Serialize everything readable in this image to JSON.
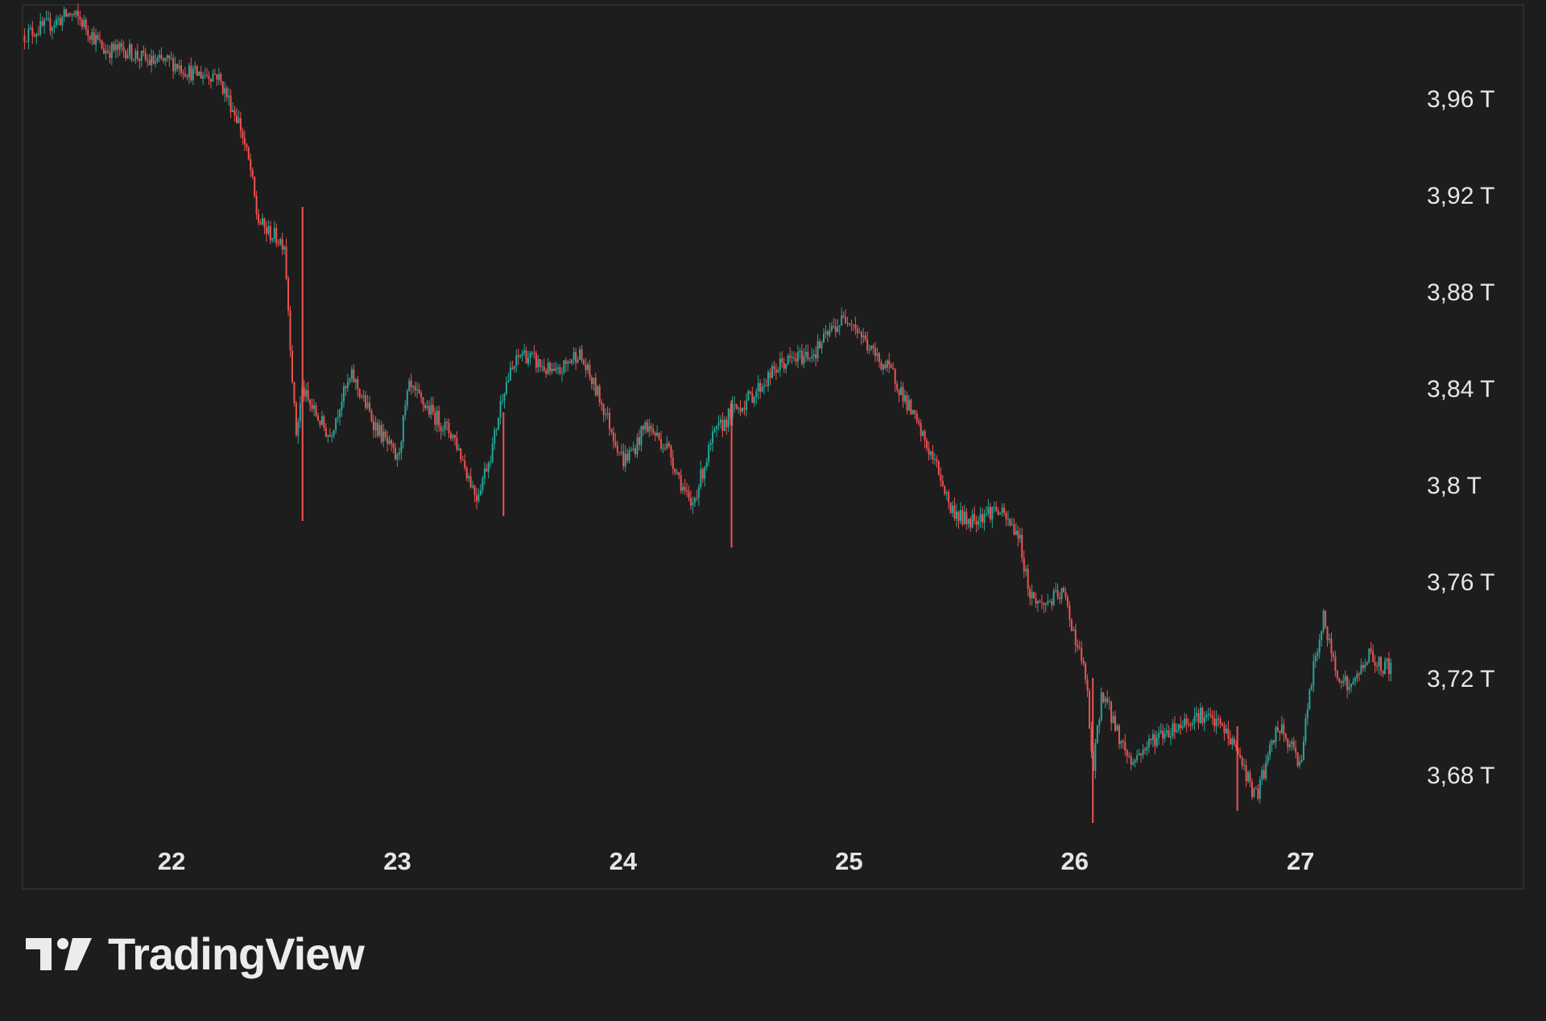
{
  "brand": {
    "name": "TradingView",
    "logo_icon": "tradingview-logo-icon",
    "text_color": "#ececec"
  },
  "colors": {
    "background": "#1d1d1d",
    "frame": "#2c2c2c",
    "up": "#26a69a",
    "down": "#ef5350",
    "label": "#e6e6e6"
  },
  "chart_data": {
    "type": "candlestick",
    "grid": false,
    "legend": "none",
    "y_axis_position": "right",
    "ylim": [
      3.655,
      4.0
    ],
    "xlim": [
      21.34,
      27.98
    ],
    "x_ticks": [
      {
        "value": 22,
        "label": "22"
      },
      {
        "value": 23,
        "label": "23"
      },
      {
        "value": 24,
        "label": "24"
      },
      {
        "value": 25,
        "label": "25"
      },
      {
        "value": 26,
        "label": "26"
      },
      {
        "value": 27,
        "label": "27"
      }
    ],
    "y_ticks": [
      {
        "value": 3.96,
        "label": "3,96 T"
      },
      {
        "value": 3.92,
        "label": "3,92 T"
      },
      {
        "value": 3.88,
        "label": "3,88 T"
      },
      {
        "value": 3.84,
        "label": "3,84 T"
      },
      {
        "value": 3.8,
        "label": "3,8 T"
      },
      {
        "value": 3.76,
        "label": "3,76 T"
      },
      {
        "value": 3.72,
        "label": "3,72 T"
      },
      {
        "value": 3.68,
        "label": "3,68 T"
      }
    ],
    "series": [
      {
        "x": [
          21.34,
          21.45,
          21.55,
          21.6,
          21.7,
          21.8,
          21.9,
          22.0,
          22.1,
          22.2,
          22.3,
          22.35,
          22.38,
          22.42,
          22.5,
          22.55,
          22.58,
          22.6,
          22.7,
          22.75,
          22.8,
          22.9,
          23.0,
          23.05,
          23.15,
          23.25,
          23.35,
          23.42,
          23.47,
          23.55,
          23.7,
          23.8,
          23.9,
          24.0,
          24.05,
          24.1,
          24.2,
          24.3,
          24.4,
          24.48,
          24.55,
          24.7,
          24.85,
          24.93,
          25.0,
          25.1,
          25.2,
          25.3,
          25.4,
          25.45,
          25.52,
          25.65,
          25.75,
          25.8,
          25.85,
          25.95,
          26.05,
          26.08,
          26.12,
          26.2,
          26.25,
          26.35,
          26.45,
          26.55,
          26.65,
          26.72,
          26.8,
          26.9,
          27.0,
          27.05,
          27.1,
          27.15,
          27.22,
          27.3,
          27.35,
          27.4
        ],
        "close": [
          3.986,
          3.99,
          3.995,
          3.992,
          3.98,
          3.98,
          3.975,
          3.975,
          3.97,
          3.97,
          3.95,
          3.93,
          3.91,
          3.905,
          3.9,
          3.82,
          3.84,
          3.835,
          3.82,
          3.835,
          3.845,
          3.825,
          3.81,
          3.84,
          3.83,
          3.82,
          3.795,
          3.815,
          3.84,
          3.855,
          3.845,
          3.855,
          3.835,
          3.81,
          3.815,
          3.825,
          3.815,
          3.79,
          3.82,
          3.83,
          3.835,
          3.85,
          3.855,
          3.865,
          3.87,
          3.855,
          3.845,
          3.825,
          3.805,
          3.79,
          3.785,
          3.79,
          3.78,
          3.755,
          3.75,
          3.755,
          3.72,
          3.68,
          3.715,
          3.695,
          3.685,
          3.695,
          3.7,
          3.705,
          3.7,
          3.69,
          3.67,
          3.7,
          3.685,
          3.72,
          3.745,
          3.725,
          3.715,
          3.73,
          3.725,
          3.725
        ]
      }
    ]
  }
}
